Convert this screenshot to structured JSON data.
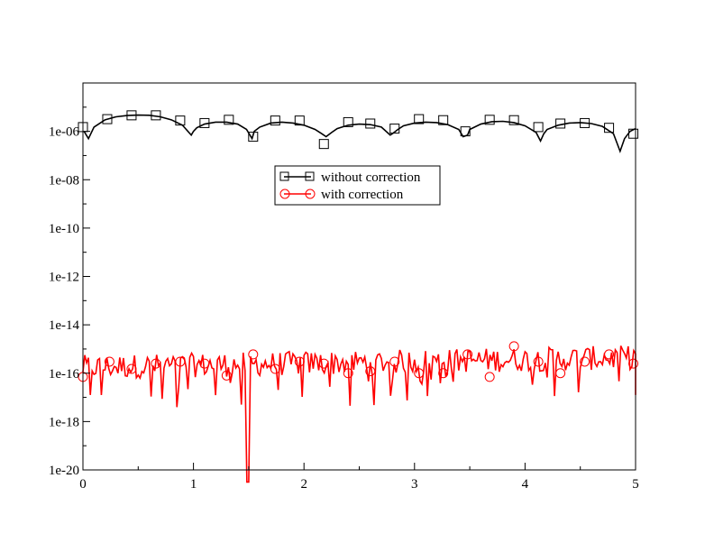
{
  "chart_data": {
    "type": "line",
    "title": "",
    "xlabel": "",
    "ylabel": "",
    "xlim": [
      0,
      5
    ],
    "ylim": [
      1e-20,
      0.0001
    ],
    "yscale": "log",
    "grid": false,
    "legend_position": "center",
    "x_ticks": [
      {
        "value": 0,
        "label": "0"
      },
      {
        "value": 1,
        "label": "1"
      },
      {
        "value": 2,
        "label": "2"
      },
      {
        "value": 3,
        "label": "3"
      },
      {
        "value": 4,
        "label": "4"
      },
      {
        "value": 5,
        "label": "5"
      }
    ],
    "y_ticks": [
      {
        "value": 1e-20,
        "label": "1e-20"
      },
      {
        "value": 1e-18,
        "label": "1e-18"
      },
      {
        "value": 1e-16,
        "label": "1e-16"
      },
      {
        "value": 1e-14,
        "label": "1e-14"
      },
      {
        "value": 1e-12,
        "label": "1e-12"
      },
      {
        "value": 1e-10,
        "label": "1e-10"
      },
      {
        "value": 1e-08,
        "label": "1e-08"
      },
      {
        "value": 1e-06,
        "label": "1e-06"
      }
    ],
    "series": [
      {
        "name": "without correction",
        "color": "#000000",
        "marker": "square",
        "x": [
          0.01,
          0.05,
          0.1,
          0.2,
          0.3,
          0.4,
          0.5,
          0.6,
          0.7,
          0.8,
          0.9,
          0.98,
          1.0,
          1.03,
          1.1,
          1.2,
          1.3,
          1.4,
          1.48,
          1.53,
          1.55,
          1.6,
          1.7,
          1.8,
          1.9,
          2.0,
          2.1,
          2.16,
          2.2,
          2.25,
          2.3,
          2.4,
          2.5,
          2.6,
          2.7,
          2.78,
          2.8,
          2.85,
          2.9,
          3.0,
          3.1,
          3.2,
          3.3,
          3.4,
          3.44,
          3.48,
          3.5,
          3.6,
          3.7,
          3.8,
          3.9,
          4.0,
          4.1,
          4.14,
          4.17,
          4.2,
          4.3,
          4.4,
          4.5,
          4.6,
          4.7,
          4.8,
          4.86,
          4.9,
          4.95,
          5.0
        ],
        "y": [
          1e-06,
          5e-07,
          1.5e-06,
          3e-06,
          4e-06,
          4.5e-06,
          4.7e-06,
          4.6e-06,
          4e-06,
          3e-06,
          1.8e-06,
          7e-07,
          1e-06,
          1.4e-06,
          2e-06,
          2.4e-06,
          2.4e-06,
          2e-06,
          1.2e-06,
          5e-07,
          1e-06,
          1.5e-06,
          2.2e-06,
          2.4e-06,
          2.2e-06,
          1.8e-06,
          1.2e-06,
          8e-07,
          6e-07,
          9e-07,
          1.3e-06,
          1.8e-06,
          2e-06,
          1.9e-06,
          1.5e-06,
          7e-07,
          8e-07,
          1.2e-06,
          1.7e-06,
          2.2e-06,
          2.4e-06,
          2.3e-06,
          1.9e-06,
          1.2e-06,
          6e-07,
          7e-07,
          1.2e-06,
          2e-06,
          2.5e-06,
          2.6e-06,
          2.3e-06,
          1.7e-06,
          9e-07,
          4e-07,
          8e-07,
          1.2e-06,
          1.8e-06,
          2.2e-06,
          2.3e-06,
          2.1e-06,
          1.6e-06,
          8e-07,
          1.5e-07,
          5e-07,
          1e-06,
          1.3e-06
        ],
        "marker_x": [
          0.0,
          0.22,
          0.44,
          0.66,
          0.88,
          1.1,
          1.32,
          1.54,
          1.74,
          1.96,
          2.18,
          2.4,
          2.6,
          2.82,
          3.04,
          3.26,
          3.46,
          3.68,
          3.9,
          4.12,
          4.32,
          4.54,
          4.76,
          4.98
        ],
        "marker_y": [
          1.5e-06,
          3.2e-06,
          4.6e-06,
          4.6e-06,
          2.8e-06,
          2.2e-06,
          3e-06,
          6e-07,
          2.8e-06,
          2.8e-06,
          3e-07,
          2.4e-06,
          2.1e-06,
          1.3e-06,
          3.2e-06,
          2.9e-06,
          1e-06,
          3e-06,
          2.9e-06,
          1.5e-06,
          2.1e-06,
          2.2e-06,
          1.4e-06,
          8e-07
        ]
      },
      {
        "name": "with correction",
        "color": "#ff0000",
        "marker": "circle",
        "marker_x": [
          0.0,
          0.24,
          0.44,
          0.66,
          0.88,
          1.1,
          1.3,
          1.54,
          1.74,
          1.96,
          2.18,
          2.4,
          2.6,
          2.82,
          3.04,
          3.26,
          3.48,
          3.68,
          3.9,
          4.12,
          4.32,
          4.54,
          4.76,
          4.98
        ],
        "marker_y": [
          7e-17,
          3e-16,
          1.5e-16,
          2.5e-16,
          3e-16,
          2.5e-16,
          8e-17,
          6e-16,
          1.5e-16,
          3e-16,
          2.5e-16,
          1e-16,
          1.2e-16,
          3e-16,
          1e-16,
          1e-16,
          6e-16,
          7e-17,
          1.3e-15,
          3e-16,
          1e-16,
          3e-16,
          6e-16,
          2.5e-16
        ]
      }
    ]
  }
}
